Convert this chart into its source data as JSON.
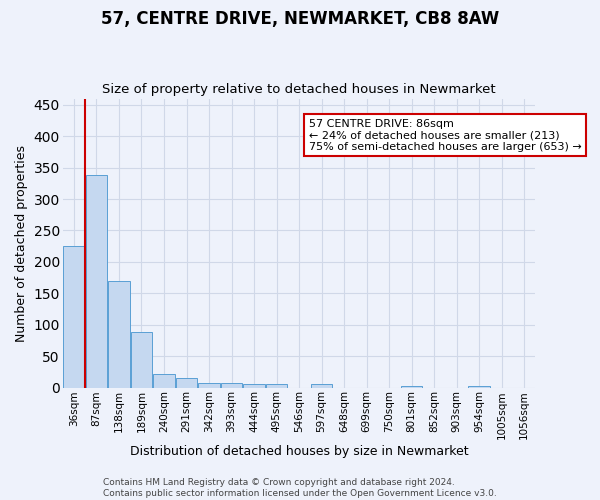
{
  "title1": "57, CENTRE DRIVE, NEWMARKET, CB8 8AW",
  "title2": "Size of property relative to detached houses in Newmarket",
  "xlabel": "Distribution of detached houses by size in Newmarket",
  "ylabel": "Number of detached properties",
  "categories": [
    "36sqm",
    "87sqm",
    "138sqm",
    "189sqm",
    "240sqm",
    "291sqm",
    "342sqm",
    "393sqm",
    "444sqm",
    "495sqm",
    "546sqm",
    "597sqm",
    "648sqm",
    "699sqm",
    "750sqm",
    "801sqm",
    "852sqm",
    "903sqm",
    "954sqm",
    "1005sqm",
    "1056sqm"
  ],
  "values": [
    225,
    338,
    170,
    89,
    22,
    15,
    8,
    8,
    5,
    6,
    0,
    5,
    0,
    0,
    0,
    3,
    0,
    0,
    3,
    0,
    0
  ],
  "bar_color": "#c5d8f0",
  "bar_edge_color": "#5a9fd4",
  "ylim": [
    0,
    460
  ],
  "yticks": [
    0,
    50,
    100,
    150,
    200,
    250,
    300,
    350,
    400,
    450
  ],
  "annotation_line1": "57 CENTRE DRIVE: 86sqm",
  "annotation_line2": "← 24% of detached houses are smaller (213)",
  "annotation_line3": "75% of semi-detached houses are larger (653) →",
  "vline_x": 0.5,
  "annotation_box_color": "#ffffff",
  "annotation_box_edge_color": "#cc0000",
  "footer1": "Contains HM Land Registry data © Crown copyright and database right 2024.",
  "footer2": "Contains public sector information licensed under the Open Government Licence v3.0.",
  "bg_color": "#eef2fb",
  "grid_color": "#d0d8e8",
  "title1_fontsize": 12,
  "title2_fontsize": 9.5,
  "xlabel_fontsize": 9,
  "ylabel_fontsize": 9,
  "tick_fontsize": 7.5,
  "annotation_fontsize": 8,
  "footer_fontsize": 6.5
}
